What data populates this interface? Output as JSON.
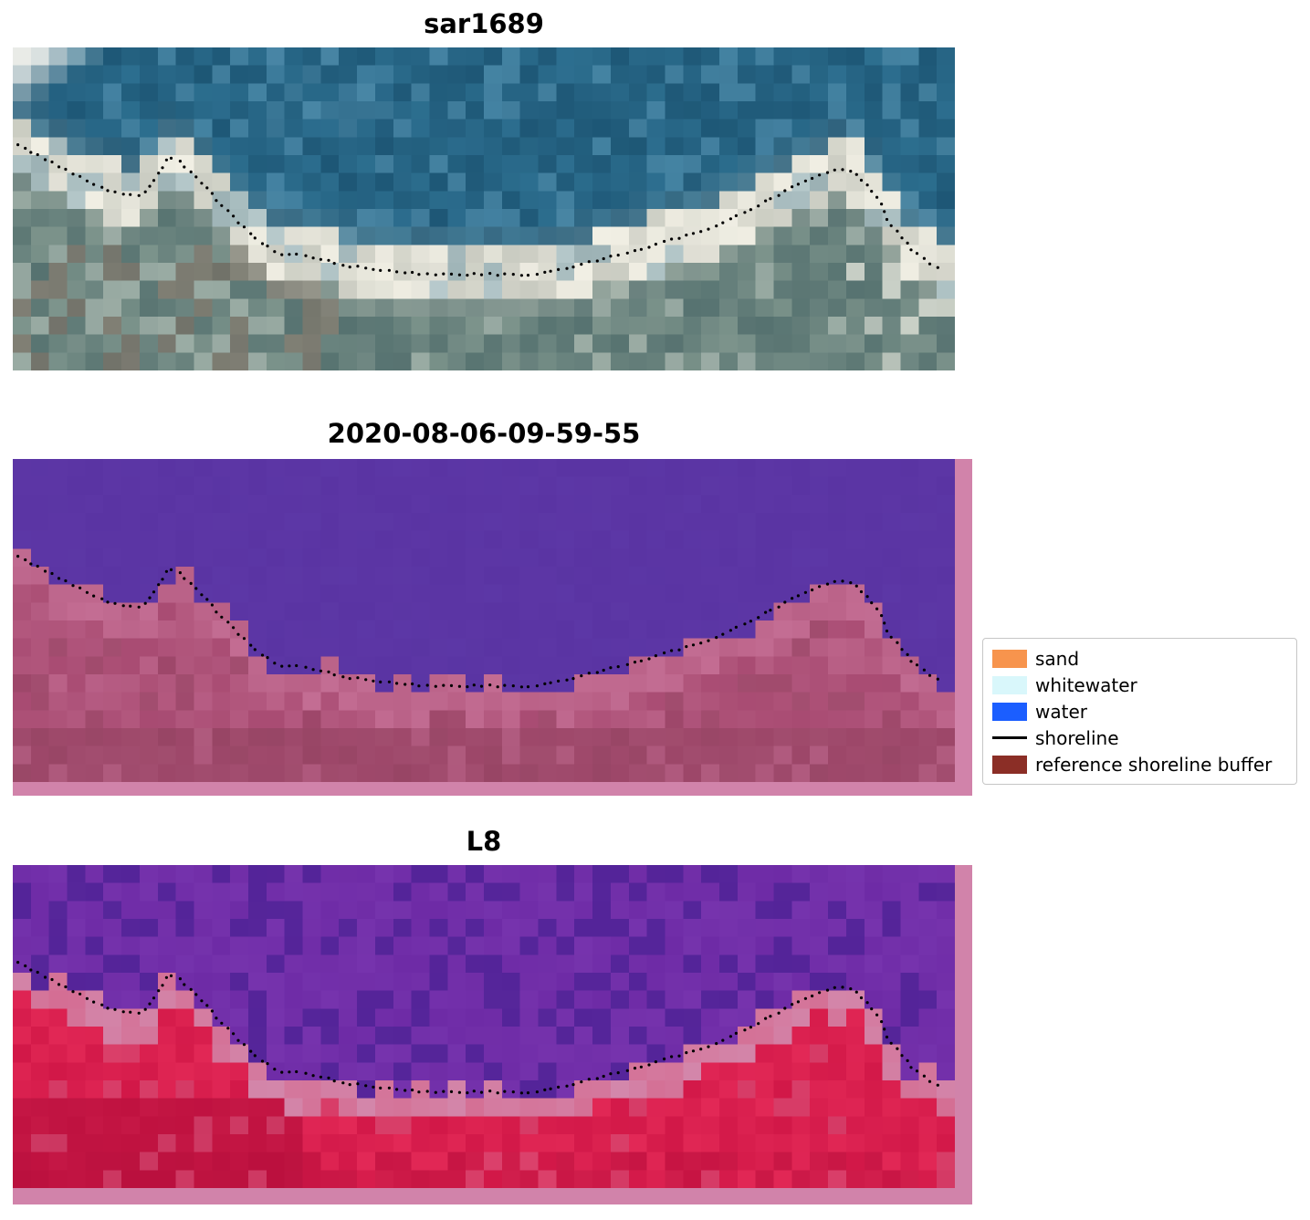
{
  "figure": {
    "panels": [
      {
        "title": "sar1689"
      },
      {
        "title": "2020-08-06-09-59-55"
      },
      {
        "title": "L8"
      }
    ],
    "legend": {
      "items": [
        {
          "label": "sand",
          "color": "#f7944d",
          "type": "patch"
        },
        {
          "label": "whitewater",
          "color": "#d9f7fb",
          "type": "patch"
        },
        {
          "label": "water",
          "color": "#1b5eff",
          "type": "patch"
        },
        {
          "label": "shoreline",
          "color": "#000000",
          "type": "line"
        },
        {
          "label": "reference shoreline buffer",
          "color": "#8b2e26",
          "type": "patch"
        }
      ]
    },
    "palettes": {
      "sar": {
        "water_dark": "#19506e",
        "water_light": "#2f7293",
        "water_bright": "#4e8cab",
        "cloud": "#e9ebe7",
        "band_low": "#c8cac0",
        "band_high": "#f1efe4",
        "land_dark": "#567270",
        "land_light": "#7d948c",
        "land_pale": "#a2b2aa",
        "land_brown": "#837265"
      },
      "classified": {
        "water": "#5a34a3",
        "border": "#d183aa",
        "band": "#c36d93",
        "land": "#a84b72",
        "land_mid": "#b45a80",
        "land_dark": "#934361"
      },
      "l8": {
        "water": "#6e2ba6",
        "water_light": "#7e3cb4",
        "water_dark": "#4b2194",
        "band": "#d387ab",
        "land": "#d21848",
        "land_bright": "#e22856",
        "land_dark": "#b20d3a",
        "land_pink": "#d6557c",
        "border": "#d183aa"
      }
    }
  },
  "chart_data": {
    "type": "line",
    "title": "",
    "panels": [
      "sar1689",
      "2020-08-06-09-59-55",
      "L8"
    ],
    "legend_entries": [
      "sand",
      "whitewater",
      "water",
      "shoreline",
      "reference shoreline buffer"
    ],
    "series": [
      {
        "name": "shoreline",
        "points": [
          [
            0.006,
            0.299
          ],
          [
            0.035,
            0.347
          ],
          [
            0.064,
            0.39
          ],
          [
            0.093,
            0.432
          ],
          [
            0.117,
            0.455
          ],
          [
            0.137,
            0.46
          ],
          [
            0.151,
            0.404
          ],
          [
            0.166,
            0.339
          ],
          [
            0.175,
            0.347
          ],
          [
            0.19,
            0.39
          ],
          [
            0.204,
            0.432
          ],
          [
            0.224,
            0.497
          ],
          [
            0.243,
            0.554
          ],
          [
            0.263,
            0.602
          ],
          [
            0.282,
            0.638
          ],
          [
            0.306,
            0.644
          ],
          [
            0.321,
            0.65
          ],
          [
            0.35,
            0.672
          ],
          [
            0.384,
            0.689
          ],
          [
            0.422,
            0.698
          ],
          [
            0.461,
            0.703
          ],
          [
            0.5,
            0.701
          ],
          [
            0.539,
            0.706
          ],
          [
            0.578,
            0.692
          ],
          [
            0.607,
            0.669
          ],
          [
            0.631,
            0.653
          ],
          [
            0.655,
            0.633
          ],
          [
            0.679,
            0.613
          ],
          [
            0.703,
            0.593
          ],
          [
            0.728,
            0.571
          ],
          [
            0.752,
            0.545
          ],
          [
            0.776,
            0.511
          ],
          [
            0.8,
            0.475
          ],
          [
            0.822,
            0.441
          ],
          [
            0.844,
            0.41
          ],
          [
            0.863,
            0.387
          ],
          [
            0.883,
            0.376
          ],
          [
            0.895,
            0.39
          ],
          [
            0.907,
            0.427
          ],
          [
            0.919,
            0.475
          ],
          [
            0.929,
            0.531
          ],
          [
            0.941,
            0.582
          ],
          [
            0.953,
            0.621
          ],
          [
            0.967,
            0.655
          ],
          [
            0.983,
            0.684
          ]
        ]
      }
    ]
  }
}
